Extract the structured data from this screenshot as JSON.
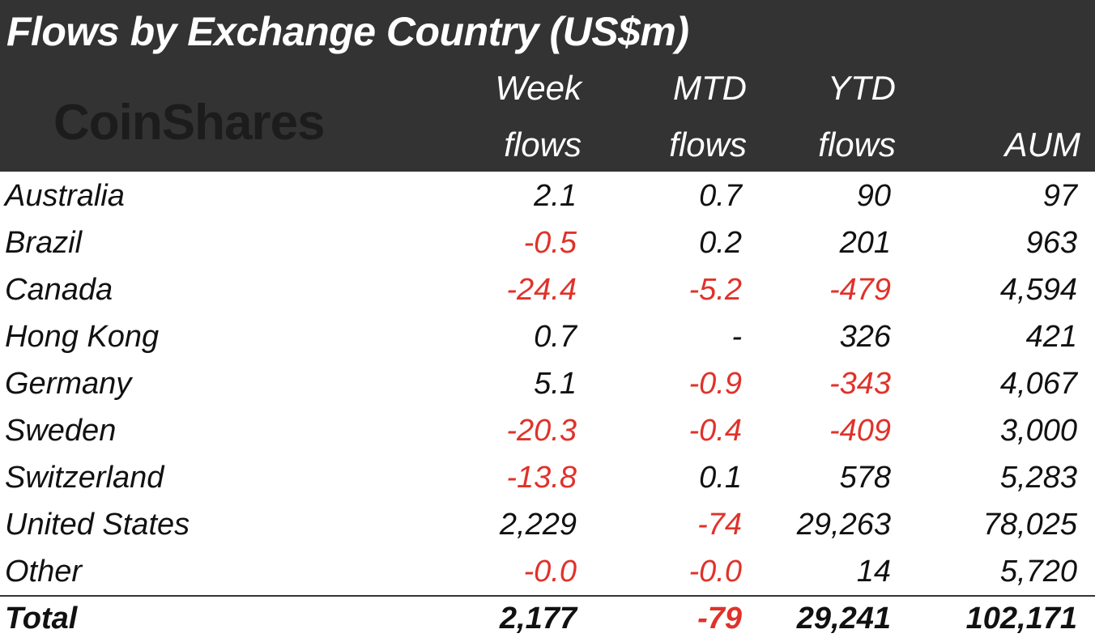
{
  "title": "Flows by Exchange Country (US$m)",
  "logo_text": "CoinShares",
  "columns": [
    {
      "line1": "Week",
      "line2": "flows"
    },
    {
      "line1": "MTD",
      "line2": "flows"
    },
    {
      "line1": "YTD",
      "line2": "flows"
    },
    {
      "line1": "",
      "line2": "AUM"
    }
  ],
  "rows": [
    {
      "country": "Australia",
      "week": "2.1",
      "mtd": "0.7",
      "ytd": "90",
      "aum": "97"
    },
    {
      "country": "Brazil",
      "week": "-0.5",
      "mtd": "0.2",
      "ytd": "201",
      "aum": "963"
    },
    {
      "country": "Canada",
      "week": "-24.4",
      "mtd": "-5.2",
      "ytd": "-479",
      "aum": "4,594"
    },
    {
      "country": "Hong Kong",
      "week": "0.7",
      "mtd": "-",
      "ytd": "326",
      "aum": "421"
    },
    {
      "country": "Germany",
      "week": "5.1",
      "mtd": "-0.9",
      "ytd": "-343",
      "aum": "4,067"
    },
    {
      "country": "Sweden",
      "week": "-20.3",
      "mtd": "-0.4",
      "ytd": "-409",
      "aum": "3,000"
    },
    {
      "country": "Switzerland",
      "week": "-13.8",
      "mtd": "0.1",
      "ytd": "578",
      "aum": "5,283"
    },
    {
      "country": "United States",
      "week": "2,229",
      "mtd": "-74",
      "ytd": "29,263",
      "aum": "78,025"
    },
    {
      "country": "Other",
      "week": "-0.0",
      "mtd": "-0.0",
      "ytd": "14",
      "aum": "5,720"
    }
  ],
  "total": {
    "country": "Total",
    "week": "2,177",
    "mtd": "-79",
    "ytd": "29,241",
    "aum": "102,171"
  },
  "colors": {
    "header_bg": "#333333",
    "negative": "#e0322a",
    "text": "#111111"
  }
}
